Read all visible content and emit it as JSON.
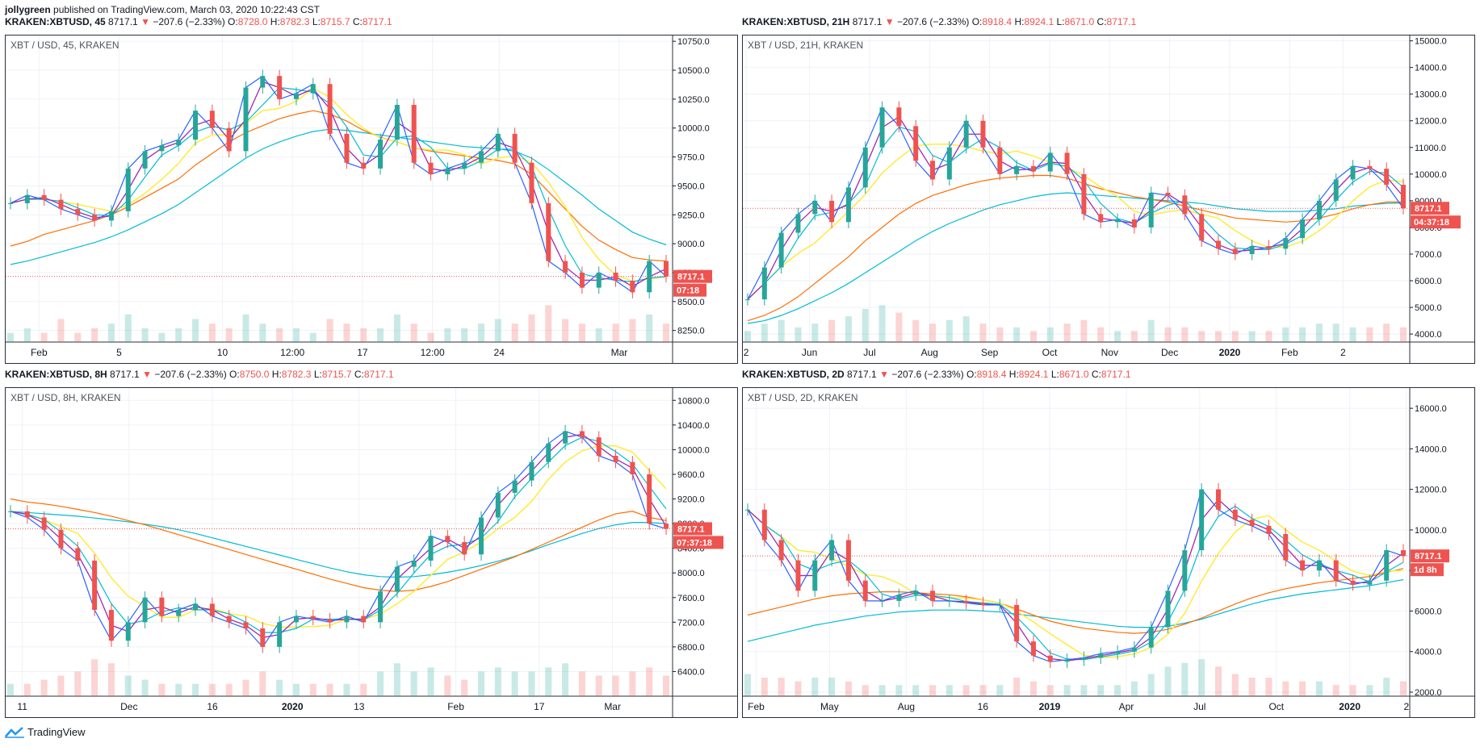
{
  "publisher": {
    "author": "jollygreen",
    "text": "published on TradingView.com, March 03, 2020 10:22:43 CST"
  },
  "brand": "TradingView",
  "colors": {
    "up": "#26a69a",
    "down": "#ef5350",
    "ema1": "#2962ff",
    "ema2": "#9c27b0",
    "ema3": "#ff80ab",
    "ema4": "#00bcd4",
    "ema5": "#ffeb3b",
    "ma200": "#ff6d00",
    "ma300": "#00bcd4"
  },
  "chart_data": [
    {
      "type": "line",
      "watermark": "XBT / USD, 45, KRAKEN",
      "header": {
        "symbol": "KRAKEN:XBTUSD, 45",
        "last": "8717.1",
        "change": "−207.6 (−2.33%)",
        "o": "8728.0",
        "h": "8782.3",
        "l": "8715.7",
        "c": "8717.1"
      },
      "price_label": "8717.1",
      "countdown": "07:18",
      "ylim": [
        8150,
        10800
      ],
      "yticks": [
        "10750.0",
        "10500.0",
        "10250.0",
        "10000.0",
        "9750.0",
        "9500.0",
        "9250.0",
        "9000.0",
        "8750.0",
        "8500.0",
        "8250.0"
      ],
      "xticks": [
        "Feb",
        "5",
        "10",
        "12:00",
        "17",
        "12:00",
        "24",
        "Mar"
      ],
      "xtick_pos": [
        0.05,
        0.17,
        0.325,
        0.43,
        0.535,
        0.64,
        0.74,
        0.92
      ],
      "price_series": [
        9350,
        9420,
        9380,
        9300,
        9250,
        9200,
        9280,
        9650,
        9800,
        9850,
        9900,
        10150,
        10000,
        9800,
        10350,
        10450,
        10250,
        10300,
        10380,
        9950,
        9700,
        9650,
        9900,
        10200,
        9700,
        9600,
        9650,
        9700,
        9800,
        9950,
        9700,
        9350,
        8850,
        8750,
        8620,
        8750,
        8680,
        8580,
        8850,
        8717
      ],
      "ma200": [
        8980,
        9020,
        9080,
        9120,
        9160,
        9200,
        9250,
        9320,
        9400,
        9480,
        9560,
        9680,
        9780,
        9880,
        9960,
        10020,
        10080,
        10120,
        10150,
        10120,
        10060,
        9980,
        9920,
        9880,
        9830,
        9800,
        9780,
        9760,
        9740,
        9720,
        9690,
        9600,
        9450,
        9300,
        9150,
        9030,
        8950,
        8880,
        8860,
        8850
      ],
      "ma300": [
        8820,
        8850,
        8890,
        8930,
        8970,
        9010,
        9060,
        9120,
        9190,
        9260,
        9340,
        9440,
        9540,
        9640,
        9740,
        9820,
        9880,
        9930,
        9970,
        9990,
        9980,
        9960,
        9940,
        9920,
        9900,
        9880,
        9860,
        9840,
        9830,
        9820,
        9800,
        9740,
        9640,
        9530,
        9420,
        9300,
        9200,
        9100,
        9040,
        8990
      ],
      "volume": [
        0.2,
        0.3,
        0.2,
        0.5,
        0.2,
        0.3,
        0.4,
        0.6,
        0.3,
        0.2,
        0.3,
        0.5,
        0.4,
        0.3,
        0.6,
        0.4,
        0.3,
        0.3,
        0.2,
        0.5,
        0.4,
        0.3,
        0.3,
        0.6,
        0.4,
        0.2,
        0.3,
        0.3,
        0.4,
        0.5,
        0.4,
        0.6,
        0.8,
        0.5,
        0.4,
        0.3,
        0.4,
        0.5,
        0.6,
        0.4
      ]
    },
    {
      "type": "line",
      "watermark": "XBT / USD, 21H, KRAKEN",
      "header": {
        "symbol": "KRAKEN:XBTUSD, 21H",
        "last": "8717.1",
        "change": "−207.6 (−2.33%)",
        "o": "8918.4",
        "h": "8924.1",
        "l": "8671.0",
        "c": "8717.1"
      },
      "price_label": "8717.1",
      "countdown": "04:37:18",
      "ylim": [
        3700,
        15200
      ],
      "yticks": [
        "15000.0",
        "14000.0",
        "13000.0",
        "12000.0",
        "11000.0",
        "10000.0",
        "9000.0",
        "8000.0",
        "7000.0",
        "6000.0",
        "5000.0",
        "4000.0"
      ],
      "xticks": [
        "2",
        "Jun",
        "Jul",
        "Aug",
        "Sep",
        "Oct",
        "Nov",
        "Dec",
        "2020",
        "Feb",
        "2"
      ],
      "xtick_pos": [
        0.005,
        0.1,
        0.19,
        0.28,
        0.37,
        0.46,
        0.55,
        0.64,
        0.73,
        0.82,
        0.9
      ],
      "price_series": [
        5300,
        6500,
        7800,
        8500,
        9000,
        8200,
        9500,
        11000,
        12500,
        11800,
        10500,
        9800,
        11000,
        12000,
        11000,
        10000,
        10300,
        10100,
        10800,
        10000,
        8500,
        8200,
        8300,
        8000,
        9300,
        9200,
        8500,
        7500,
        7200,
        7000,
        7300,
        7200,
        7600,
        8300,
        9000,
        9800,
        10300,
        10200,
        9600,
        8717
      ],
      "ma200": [
        4500,
        4700,
        5000,
        5400,
        5900,
        6400,
        6900,
        7500,
        8000,
        8500,
        8900,
        9200,
        9400,
        9600,
        9750,
        9850,
        9900,
        9950,
        9950,
        9850,
        9650,
        9450,
        9300,
        9150,
        9050,
        8950,
        8800,
        8650,
        8500,
        8350,
        8300,
        8250,
        8200,
        8250,
        8350,
        8500,
        8700,
        8850,
        8950,
        8950
      ],
      "ma300": [
        4400,
        4500,
        4700,
        4950,
        5250,
        5550,
        5900,
        6300,
        6700,
        7100,
        7500,
        7850,
        8150,
        8400,
        8650,
        8850,
        9000,
        9150,
        9250,
        9300,
        9250,
        9200,
        9150,
        9100,
        9050,
        9000,
        8950,
        8900,
        8800,
        8700,
        8650,
        8600,
        8600,
        8600,
        8650,
        8700,
        8800,
        8850,
        8900,
        8920
      ],
      "volume": [
        0.3,
        0.5,
        0.6,
        0.4,
        0.5,
        0.6,
        0.7,
        0.9,
        1.0,
        0.8,
        0.6,
        0.5,
        0.6,
        0.7,
        0.5,
        0.4,
        0.4,
        0.3,
        0.4,
        0.5,
        0.6,
        0.4,
        0.3,
        0.3,
        0.6,
        0.4,
        0.4,
        0.3,
        0.3,
        0.3,
        0.3,
        0.3,
        0.4,
        0.4,
        0.5,
        0.5,
        0.4,
        0.4,
        0.5,
        0.4
      ]
    },
    {
      "type": "line",
      "watermark": "XBT / USD, 8H, KRAKEN",
      "header": {
        "symbol": "KRAKEN:XBTUSD, 8H",
        "last": "8717.1",
        "change": "−207.6 (−2.33%)",
        "o": "8750.0",
        "h": "8782.3",
        "l": "8715.7",
        "c": "8717.1"
      },
      "price_label": "8717.1",
      "countdown": "07:37:18",
      "ylim": [
        6000,
        11000
      ],
      "yticks": [
        "10800.0",
        "10400.0",
        "10000.0",
        "9600.0",
        "9200.0",
        "8800.0",
        "8400.0",
        "8000.0",
        "7600.0",
        "7200.0",
        "6800.0",
        "6400.0"
      ],
      "xticks": [
        "11",
        "Dec",
        "16",
        "2020",
        "13",
        "Feb",
        "17",
        "Mar"
      ],
      "xtick_pos": [
        0.025,
        0.185,
        0.31,
        0.43,
        0.53,
        0.675,
        0.8,
        0.91
      ],
      "price_series": [
        9000,
        8900,
        8700,
        8400,
        8200,
        7400,
        6900,
        7200,
        7600,
        7300,
        7400,
        7500,
        7300,
        7200,
        7100,
        6800,
        7200,
        7300,
        7250,
        7200,
        7300,
        7200,
        7700,
        8100,
        8200,
        8600,
        8500,
        8300,
        8900,
        9300,
        9500,
        9800,
        10100,
        10300,
        10200,
        9900,
        9800,
        9600,
        8800,
        8717
      ],
      "ma200": [
        9200,
        9150,
        9120,
        9080,
        9030,
        8980,
        8920,
        8850,
        8780,
        8700,
        8620,
        8540,
        8460,
        8380,
        8300,
        8220,
        8140,
        8060,
        7980,
        7900,
        7830,
        7760,
        7720,
        7700,
        7720,
        7780,
        7860,
        7960,
        8060,
        8160,
        8260,
        8380,
        8500,
        8620,
        8740,
        8860,
        8960,
        9000,
        8900,
        8850
      ],
      "ma300": [
        9000,
        8980,
        8960,
        8940,
        8920,
        8890,
        8860,
        8830,
        8790,
        8750,
        8700,
        8640,
        8570,
        8500,
        8430,
        8360,
        8290,
        8220,
        8150,
        8080,
        8020,
        7970,
        7940,
        7930,
        7940,
        7970,
        8010,
        8060,
        8120,
        8190,
        8270,
        8360,
        8460,
        8550,
        8640,
        8720,
        8780,
        8820,
        8820,
        8800
      ],
      "volume": [
        0.3,
        0.3,
        0.4,
        0.5,
        0.6,
        0.9,
        0.8,
        0.5,
        0.4,
        0.3,
        0.3,
        0.3,
        0.3,
        0.3,
        0.4,
        0.6,
        0.4,
        0.3,
        0.3,
        0.3,
        0.3,
        0.3,
        0.6,
        0.8,
        0.6,
        0.7,
        0.5,
        0.4,
        0.6,
        0.7,
        0.6,
        0.6,
        0.7,
        0.8,
        0.6,
        0.5,
        0.5,
        0.6,
        0.7,
        0.5
      ]
    },
    {
      "type": "line",
      "watermark": "XBT / USD, 2D, KRAKEN",
      "header": {
        "symbol": "KRAKEN:XBTUSD, 2D",
        "last": "8717.1",
        "change": "−207.6 (−2.33%)",
        "o": "8918.4",
        "h": "8924.1",
        "l": "8671.0",
        "c": "8717.1"
      },
      "price_label": "8717.1",
      "countdown": "1d 8h",
      "ylim": [
        1800,
        17000
      ],
      "yticks": [
        "16000.0",
        "14000.0",
        "12000.0",
        "10000.0",
        "8000.0",
        "6000.0",
        "4000.0",
        "2000.0"
      ],
      "xticks": [
        "Feb",
        "May",
        "Aug",
        "16",
        "2019",
        "Apr",
        "Jul",
        "Oct",
        "2020",
        "2"
      ],
      "xtick_pos": [
        0.02,
        0.13,
        0.245,
        0.36,
        0.46,
        0.575,
        0.685,
        0.8,
        0.91,
        0.995
      ],
      "price_series": [
        11000,
        9500,
        8500,
        7000,
        8500,
        9500,
        7500,
        6500,
        6500,
        6800,
        7000,
        6500,
        6500,
        6400,
        6300,
        6300,
        4500,
        3800,
        3500,
        3600,
        3700,
        3900,
        4000,
        4200,
        5200,
        7000,
        9000,
        12000,
        11000,
        10500,
        10200,
        9800,
        8500,
        8000,
        8500,
        7500,
        7300,
        7500,
        9000,
        8717
      ],
      "ma200": [
        5800,
        6000,
        6200,
        6400,
        6600,
        6750,
        6850,
        6900,
        6950,
        6950,
        6900,
        6850,
        6800,
        6700,
        6550,
        6400,
        6100,
        5800,
        5500,
        5300,
        5150,
        5050,
        4950,
        4900,
        4950,
        5100,
        5350,
        5650,
        6000,
        6350,
        6650,
        6900,
        7100,
        7250,
        7400,
        7500,
        7600,
        7700,
        7900,
        8100
      ],
      "ma300": [
        4500,
        4700,
        4900,
        5100,
        5300,
        5450,
        5600,
        5750,
        5850,
        5950,
        6000,
        6050,
        6050,
        6050,
        6000,
        5950,
        5850,
        5750,
        5650,
        5550,
        5450,
        5350,
        5250,
        5200,
        5200,
        5250,
        5400,
        5600,
        5850,
        6100,
        6350,
        6550,
        6700,
        6850,
        6950,
        7050,
        7150,
        7250,
        7400,
        7550
      ],
      "volume": [
        0.6,
        0.5,
        0.5,
        0.4,
        0.5,
        0.5,
        0.4,
        0.3,
        0.3,
        0.3,
        0.3,
        0.3,
        0.3,
        0.3,
        0.3,
        0.3,
        0.5,
        0.4,
        0.3,
        0.3,
        0.3,
        0.3,
        0.3,
        0.4,
        0.6,
        0.8,
        0.9,
        1.0,
        0.8,
        0.6,
        0.5,
        0.5,
        0.4,
        0.4,
        0.4,
        0.3,
        0.3,
        0.3,
        0.5,
        0.4
      ]
    }
  ]
}
